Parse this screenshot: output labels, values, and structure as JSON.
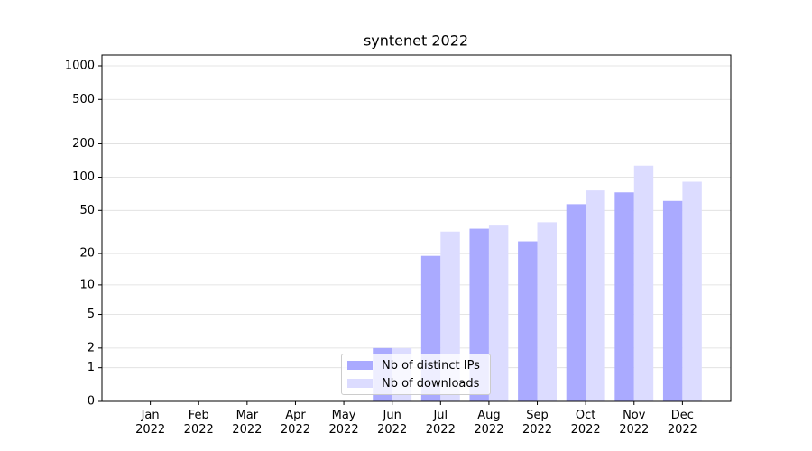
{
  "chart_data": {
    "type": "bar",
    "title": "syntenet 2022",
    "categories": [
      "Jan\n2022",
      "Feb\n2022",
      "Mar\n2022",
      "Apr\n2022",
      "May\n2022",
      "Jun\n2022",
      "Jul\n2022",
      "Aug\n2022",
      "Sep\n2022",
      "Oct\n2022",
      "Nov\n2022",
      "Dec\n2022"
    ],
    "series": [
      {
        "name": "Nb of distinct IPs",
        "color": "#aaaaff",
        "values": [
          0,
          0,
          0,
          0,
          0,
          2,
          19,
          34,
          26,
          57,
          73,
          61
        ]
      },
      {
        "name": "Nb of downloads",
        "color": "#dcdcff",
        "values": [
          0,
          0,
          0,
          0,
          0,
          2,
          32,
          37,
          39,
          76,
          127,
          91
        ]
      }
    ],
    "ylim": [
      0,
      1250
    ],
    "yticks": [
      0,
      1,
      2,
      5,
      10,
      20,
      50,
      100,
      200,
      500,
      1000
    ],
    "yscale": "log1p",
    "grid": true,
    "legend": "lower center"
  }
}
